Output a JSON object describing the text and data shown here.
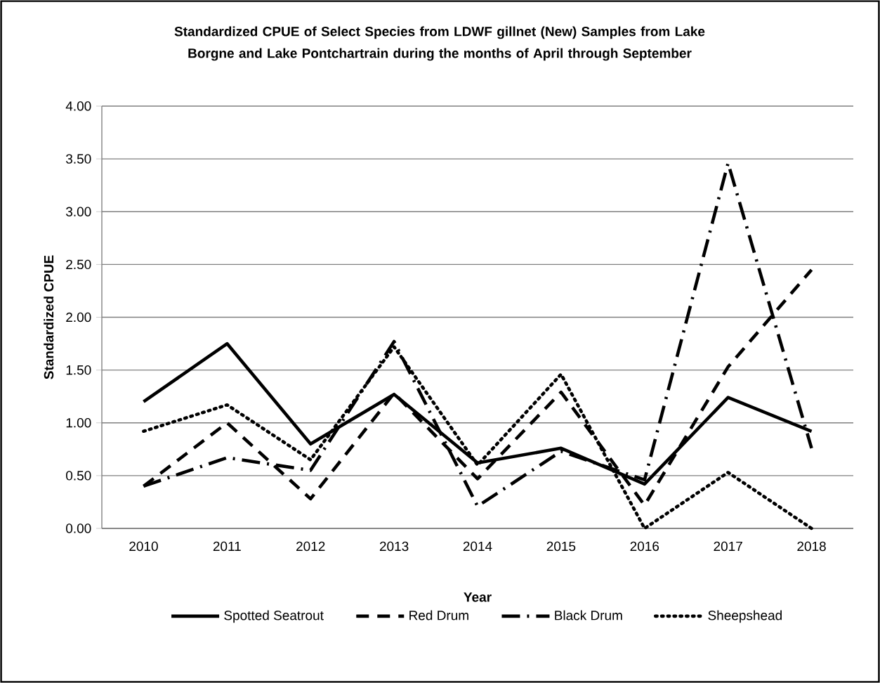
{
  "chart_data": {
    "type": "line",
    "title": "Standardized CPUE of Select Species from LDWF gillnet (New) Samples from Lake Borgne and Lake Pontchartrain during the months of April through September",
    "xlabel": "Year",
    "ylabel": "Standardized CPUE",
    "categories": [
      "2010",
      "2011",
      "2012",
      "2013",
      "2014",
      "2015",
      "2016",
      "2017",
      "2018"
    ],
    "series": [
      {
        "name": "Spotted Seatrout",
        "color": "#000000",
        "line_style": "solid",
        "values": [
          1.2,
          1.75,
          0.8,
          1.27,
          0.62,
          0.76,
          0.42,
          1.24,
          0.92
        ]
      },
      {
        "name": "Red Drum",
        "color": "#000000",
        "line_style": "dashed",
        "values": [
          0.4,
          1.0,
          0.28,
          1.28,
          0.47,
          1.29,
          0.22,
          1.53,
          2.45
        ]
      },
      {
        "name": "Black Drum",
        "color": "#000000",
        "line_style": "dashdot",
        "values": [
          0.4,
          0.67,
          0.55,
          1.77,
          0.21,
          0.73,
          0.46,
          3.46,
          0.76
        ]
      },
      {
        "name": "Sheepshead",
        "color": "#000000",
        "line_style": "dotted",
        "values": [
          0.92,
          1.17,
          0.65,
          1.72,
          0.6,
          1.46,
          0.0,
          0.53,
          0.0
        ]
      }
    ],
    "ylim": [
      0,
      4
    ],
    "yticks": [
      {
        "value": 0,
        "label": "0.00"
      },
      {
        "value": 0.5,
        "label": "0.50"
      },
      {
        "value": 1,
        "label": "1.00"
      },
      {
        "value": 1.5,
        "label": "1.50"
      },
      {
        "value": 2,
        "label": "2.00"
      },
      {
        "value": 2.5,
        "label": "2.50"
      },
      {
        "value": 3,
        "label": "3.00"
      },
      {
        "value": 3.5,
        "label": "3.50"
      },
      {
        "value": 4,
        "label": "4.00"
      }
    ],
    "grid": "y",
    "legend": "bottom"
  }
}
